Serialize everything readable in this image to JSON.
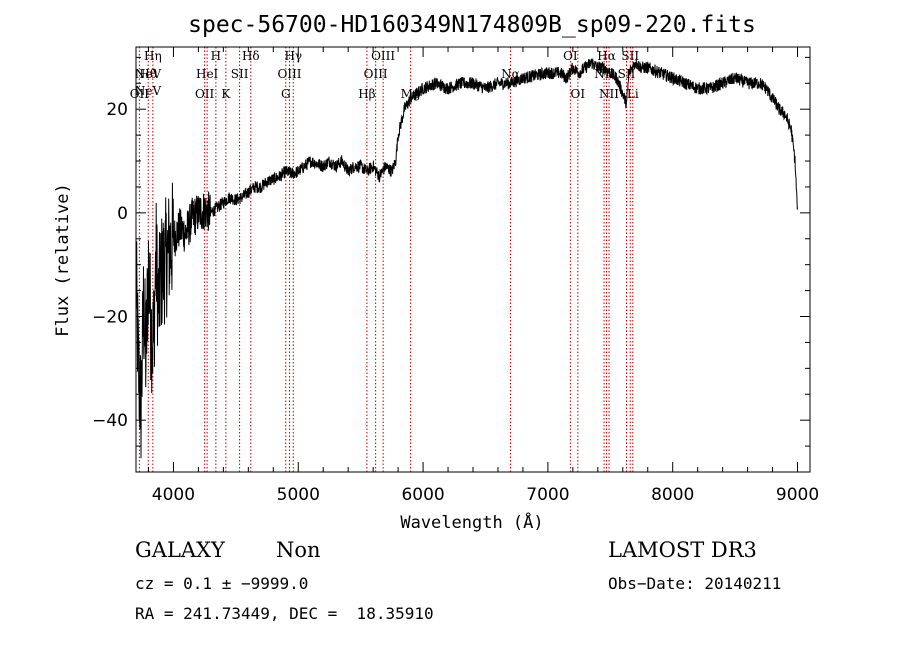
{
  "chart_data": {
    "type": "line",
    "title": "spec-56700-HD160349N174809B_sp09-220.fits",
    "xlabel": "Wavelength (Å)",
    "ylabel": "Flux (relative)",
    "xlim": [
      3700,
      9100
    ],
    "ylim": [
      -50,
      32
    ],
    "xticks": [
      4000,
      5000,
      6000,
      7000,
      8000,
      9000
    ],
    "yticks": [
      -40,
      -20,
      0,
      20
    ],
    "ytick_labels": [
      "−40",
      "−20",
      "0",
      "20"
    ],
    "grid": false,
    "series": [
      {
        "x": [
          3700,
          3720,
          3740,
          3760,
          3780,
          3800,
          3820,
          3840,
          3860,
          3880,
          3900,
          3950,
          4000,
          4050,
          4100,
          4150,
          4200,
          4250,
          4300,
          4350,
          4400,
          4450,
          4500,
          4550,
          4600,
          4650,
          4700,
          4750,
          4800,
          4850,
          4900,
          4950,
          5000,
          5050,
          5100,
          5150,
          5200,
          5250,
          5300,
          5350,
          5400,
          5450,
          5500,
          5550,
          5600,
          5650,
          5700,
          5750,
          5780,
          5800,
          5820,
          5850,
          5900,
          5950,
          6000,
          6100,
          6200,
          6300,
          6400,
          6500,
          6600,
          6700,
          6800,
          6900,
          7000,
          7100,
          7150,
          7200,
          7250,
          7300,
          7350,
          7400,
          7450,
          7500,
          7550,
          7600,
          7630,
          7650,
          7700,
          7750,
          7800,
          7900,
          8000,
          8100,
          8200,
          8300,
          8400,
          8500,
          8600,
          8700,
          8750,
          8800,
          8830,
          8850,
          8900,
          8950,
          8980,
          9000
        ],
        "y": [
          -12,
          -30,
          -38,
          -18,
          -28,
          -10,
          -22,
          -25,
          -8,
          -18,
          -12,
          -8,
          -5,
          -3,
          -4,
          -1,
          0,
          0.5,
          0,
          1,
          2,
          3,
          2.5,
          3,
          4,
          5,
          5,
          6,
          6.5,
          7,
          8,
          7.5,
          8,
          9,
          10,
          9.5,
          9,
          10,
          9,
          10,
          8,
          9,
          9,
          8,
          9,
          7,
          9,
          8,
          10,
          15,
          17,
          20,
          22,
          23,
          24,
          25,
          24,
          25,
          25,
          24,
          25,
          25,
          26,
          26.5,
          27,
          27,
          26,
          28,
          27,
          28,
          29,
          28,
          28,
          27,
          26,
          23,
          21,
          27,
          29,
          28,
          28,
          27,
          26,
          25,
          24,
          24,
          25,
          26,
          25,
          25,
          24,
          22,
          21,
          20,
          19,
          16,
          10,
          0
        ]
      }
    ],
    "annotations": [
      {
        "label": "NeV",
        "x": 3346
      },
      {
        "label": "NeV",
        "x": 3426
      },
      {
        "label": "OII",
        "x": 3727
      },
      {
        "label": "Hθ",
        "x": 3798
      },
      {
        "label": "Hη",
        "x": 3835
      },
      {
        "label": "OII",
        "x": 4250
      },
      {
        "label": "HeI",
        "x": 4270
      },
      {
        "label": "H",
        "x": 4340
      },
      {
        "label": "K",
        "x": 4420
      },
      {
        "label": "SII",
        "x": 4530
      },
      {
        "label": "Hδ",
        "x": 4620
      },
      {
        "label": "G",
        "x": 4900
      },
      {
        "label": "OIII",
        "x": 4930
      },
      {
        "label": "Hγ",
        "x": 4960
      },
      {
        "label": "Hβ",
        "x": 5550
      },
      {
        "label": "OIII",
        "x": 5620
      },
      {
        "label": "OIII",
        "x": 5680
      },
      {
        "label": "Mg",
        "x": 5900
      },
      {
        "label": "Nα",
        "x": 6700
      },
      {
        "label": "OI",
        "x": 7180
      },
      {
        "label": "OI",
        "x": 7240
      },
      {
        "label": "NII",
        "x": 7450
      },
      {
        "label": "Hα",
        "x": 7470
      },
      {
        "label": "NII",
        "x": 7490
      },
      {
        "label": "SII",
        "x": 7630
      },
      {
        "label": "SII",
        "x": 7660
      },
      {
        "label": "Li",
        "x": 7680
      }
    ],
    "line_color": "#000000",
    "marker_color": "#c00000"
  },
  "info": {
    "type_label": "GALAXY",
    "subclass": "Non",
    "survey": "LAMOST DR3",
    "cz": "cz = 0.1 ± −9999.0",
    "obs_date": "Obs−Date: 20140211",
    "radec": "RA = 241.73449, DEC =  18.35910"
  }
}
